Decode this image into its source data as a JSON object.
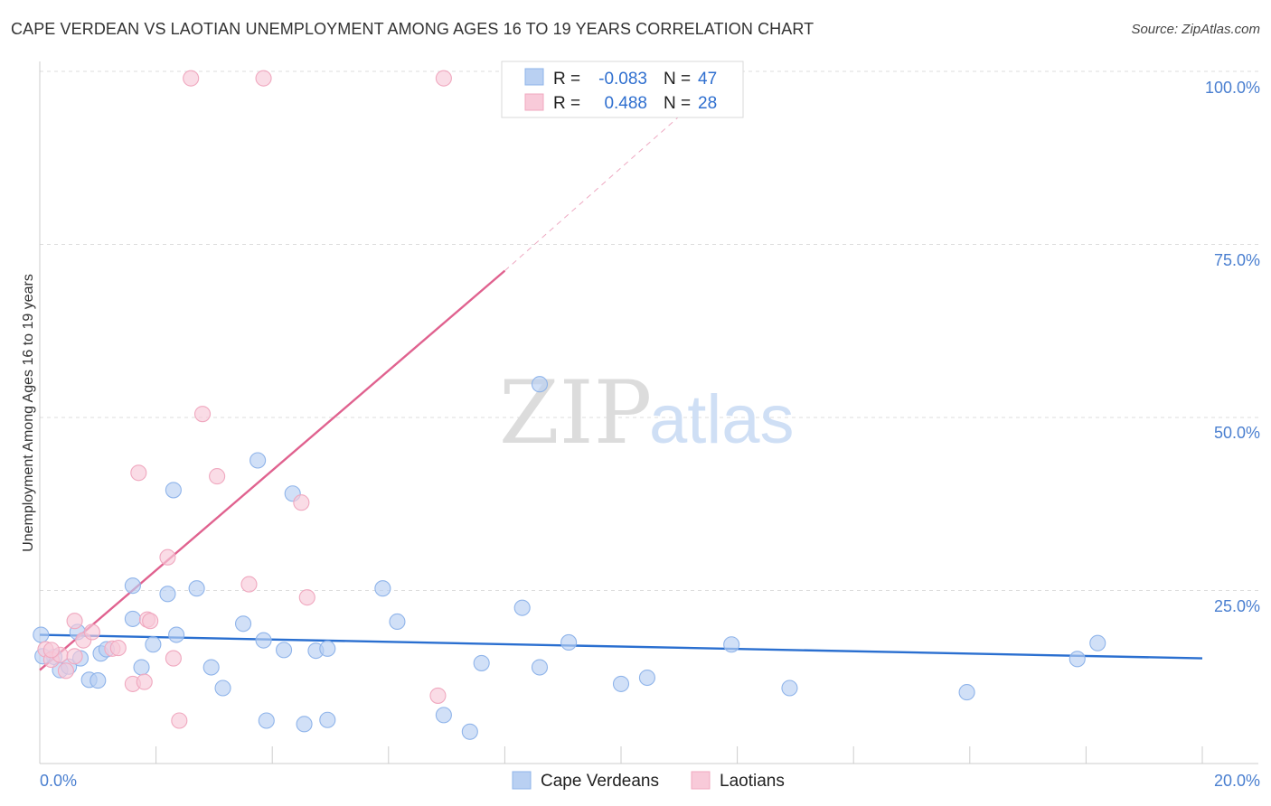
{
  "chart_data": {
    "type": "scatter",
    "title": "CAPE VERDEAN VS LAOTIAN UNEMPLOYMENT AMONG AGES 16 TO 19 YEARS CORRELATION CHART",
    "source": "Source: ZipAtlas.com",
    "watermark": [
      "ZIP",
      "atlas"
    ],
    "xlabel": "",
    "ylabel": "Unemployment Among Ages 16 to 19 years",
    "xlim": [
      0,
      20
    ],
    "ylim": [
      0,
      100
    ],
    "x_tick_labels": {
      "left": "0.0%",
      "right": "20.0%"
    },
    "y_ticks": [
      {
        "value": 25,
        "label": "25.0%"
      },
      {
        "value": 50,
        "label": "50.0%"
      },
      {
        "value": 75,
        "label": "75.0%"
      },
      {
        "value": 100,
        "label": "100.0%"
      }
    ],
    "legend": [
      {
        "r_label": "R =",
        "r_value": "-0.083",
        "n_label": "N =",
        "n_value": "47"
      },
      {
        "r_label": "R =",
        "r_value": "0.488",
        "n_label": "N =",
        "n_value": "28"
      }
    ],
    "series": [
      {
        "name": "Cape Verdeans",
        "color": "#8fb4ea",
        "fill": "#b9d0f2",
        "line_color": "#2a6fd0",
        "trend": {
          "x0": 0,
          "y0": 18.6,
          "x1": 20,
          "y1": 15.2,
          "dashed_to": null
        },
        "points": [
          [
            0.02,
            18.6
          ],
          [
            0.25,
            15.4
          ],
          [
            0.35,
            13.5
          ],
          [
            0.5,
            14.0
          ],
          [
            0.65,
            19.0
          ],
          [
            0.7,
            15.2
          ],
          [
            0.85,
            12.1
          ],
          [
            1.05,
            15.9
          ],
          [
            1.15,
            16.5
          ],
          [
            1.6,
            20.9
          ],
          [
            1.6,
            25.7
          ],
          [
            1.75,
            13.9
          ],
          [
            1.95,
            17.2
          ],
          [
            2.2,
            24.5
          ],
          [
            2.3,
            39.5
          ],
          [
            2.35,
            18.6
          ],
          [
            2.7,
            25.3
          ],
          [
            2.95,
            13.9
          ],
          [
            3.15,
            10.9
          ],
          [
            3.5,
            20.2
          ],
          [
            3.75,
            43.8
          ],
          [
            3.85,
            17.8
          ],
          [
            3.9,
            6.2
          ],
          [
            4.2,
            16.4
          ],
          [
            4.35,
            39.0
          ],
          [
            4.55,
            5.7
          ],
          [
            4.75,
            16.3
          ],
          [
            4.95,
            16.6
          ],
          [
            4.95,
            6.3
          ],
          [
            5.9,
            25.3
          ],
          [
            6.15,
            20.5
          ],
          [
            6.95,
            7.0
          ],
          [
            7.4,
            4.6
          ],
          [
            7.6,
            14.5
          ],
          [
            8.3,
            22.5
          ],
          [
            8.6,
            13.9
          ],
          [
            8.6,
            54.8
          ],
          [
            9.1,
            17.5
          ],
          [
            10.0,
            11.5
          ],
          [
            10.45,
            12.4
          ],
          [
            11.9,
            17.2
          ],
          [
            12.9,
            10.9
          ],
          [
            15.95,
            10.3
          ],
          [
            17.85,
            15.1
          ],
          [
            18.2,
            17.4
          ],
          [
            0.05,
            15.5
          ],
          [
            1.0,
            12.0
          ]
        ]
      },
      {
        "name": "Laotians",
        "color": "#f0a8bf",
        "fill": "#f8cad9",
        "line_color": "#e0628f",
        "trend": {
          "x0": 0,
          "y0": 13.5,
          "x1": 8.0,
          "y1": 71.2,
          "dashed_to": {
            "x": 11.0,
            "y": 93.5
          }
        },
        "points": [
          [
            0.1,
            16.5
          ],
          [
            0.2,
            15.0
          ],
          [
            0.35,
            15.7
          ],
          [
            0.45,
            13.4
          ],
          [
            0.6,
            15.5
          ],
          [
            0.75,
            17.8
          ],
          [
            0.9,
            19.0
          ],
          [
            1.25,
            16.6
          ],
          [
            1.35,
            16.7
          ],
          [
            1.6,
            11.5
          ],
          [
            1.7,
            42.0
          ],
          [
            1.8,
            11.8
          ],
          [
            1.85,
            20.8
          ],
          [
            1.9,
            20.6
          ],
          [
            2.2,
            29.8
          ],
          [
            2.3,
            15.2
          ],
          [
            2.4,
            6.2
          ],
          [
            2.6,
            99.0
          ],
          [
            2.8,
            50.5
          ],
          [
            3.05,
            41.5
          ],
          [
            3.6,
            25.9
          ],
          [
            3.85,
            99.0
          ],
          [
            4.5,
            37.7
          ],
          [
            4.6,
            24.0
          ],
          [
            6.85,
            9.8
          ],
          [
            6.95,
            99.0
          ],
          [
            0.2,
            16.4
          ],
          [
            0.6,
            20.6
          ]
        ]
      }
    ]
  }
}
